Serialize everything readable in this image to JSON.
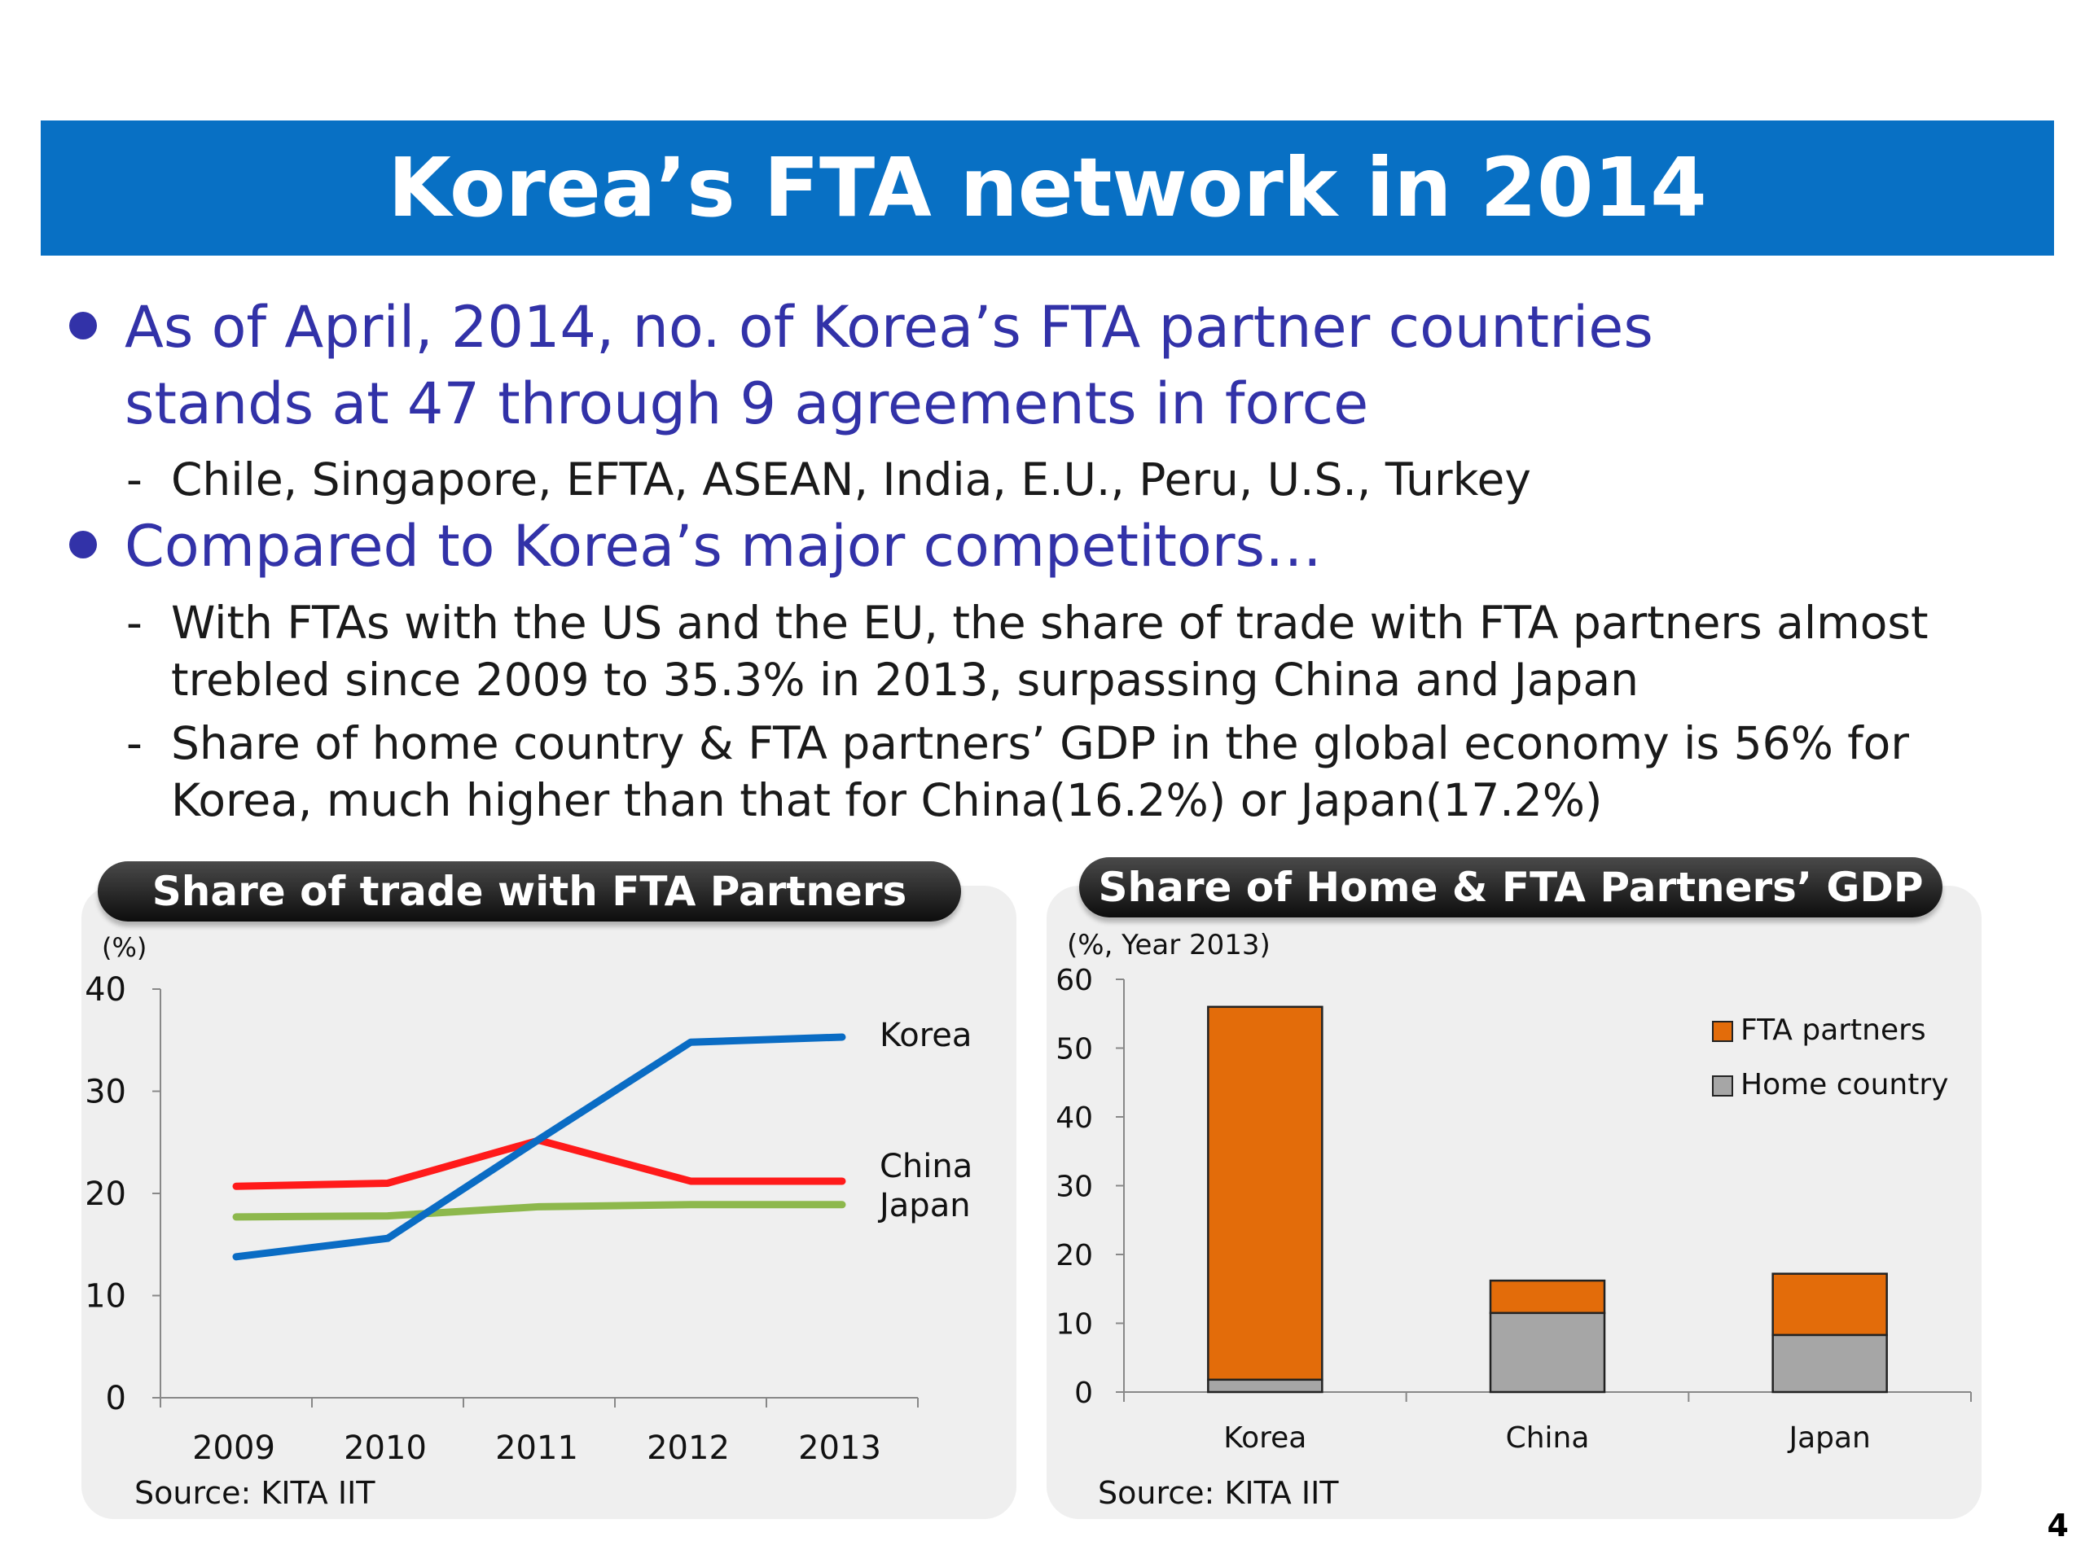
{
  "slide": {
    "title": "Korea’s FTA network in 2014",
    "page_number": "4"
  },
  "bullets": [
    {
      "lines": [
        "As of April, 2014, no. of Korea’s FTA partner countries",
        "stands at 47 through 9 agreements in force"
      ],
      "subs": [
        {
          "lines": [
            "Chile, Singapore, EFTA, ASEAN, India, E.U., Peru, U.S., Turkey"
          ]
        }
      ]
    },
    {
      "lines": [
        "Compared to Korea’s major competitors…"
      ],
      "subs": [
        {
          "lines": [
            "With FTAs with the US and the EU, the share of trade with FTA partners almost",
            "trebled since 2009 to 35.3% in 2013, surpassing China and Japan"
          ]
        },
        {
          "lines": [
            "Share of home country & FTA partners’ GDP in the global economy is 56% for",
            "Korea, much higher than that for China(16.2%) or Japan(17.2%)"
          ]
        }
      ]
    }
  ],
  "charts": {
    "left_header": "Share of trade with FTA Partners",
    "right_header": "Share of Home & FTA Partners’ GDP"
  },
  "chart_data": [
    {
      "type": "line",
      "title": "Share of trade with FTA Partners",
      "ylabel": "(%)",
      "x": [
        "2009",
        "2010",
        "2011",
        "2012",
        "2013"
      ],
      "ylim": [
        0,
        40
      ],
      "yticks": [
        0,
        10,
        20,
        30,
        40
      ],
      "series": [
        {
          "name": "Korea",
          "values": [
            13.8,
            15.6,
            25.3,
            34.8,
            35.3
          ],
          "color": "#0A6CC4"
        },
        {
          "name": "China",
          "values": [
            20.7,
            21.0,
            25.2,
            21.2,
            21.2
          ],
          "color": "#FF1A1A"
        },
        {
          "name": "Japan",
          "values": [
            17.7,
            17.8,
            18.7,
            18.9,
            18.9
          ],
          "color": "#8DB84C"
        }
      ],
      "source": "Source: KITA IIT"
    },
    {
      "type": "bar",
      "stacked": true,
      "title": "Share of Home & FTA Partners’ GDP",
      "ylabel": "(%, Year 2013)",
      "categories": [
        "Korea",
        "China",
        "Japan"
      ],
      "ylim": [
        0,
        60
      ],
      "yticks": [
        0,
        10,
        20,
        30,
        40,
        50,
        60
      ],
      "series": [
        {
          "name": "Home country",
          "values": [
            1.8,
            11.5,
            8.3
          ],
          "color": "#A6A6A6"
        },
        {
          "name": "FTA partners",
          "values": [
            54.2,
            4.7,
            8.9
          ],
          "color": "#E36C0A"
        }
      ],
      "legend_position": "top-right",
      "source": "Source: KITA IIT"
    }
  ]
}
